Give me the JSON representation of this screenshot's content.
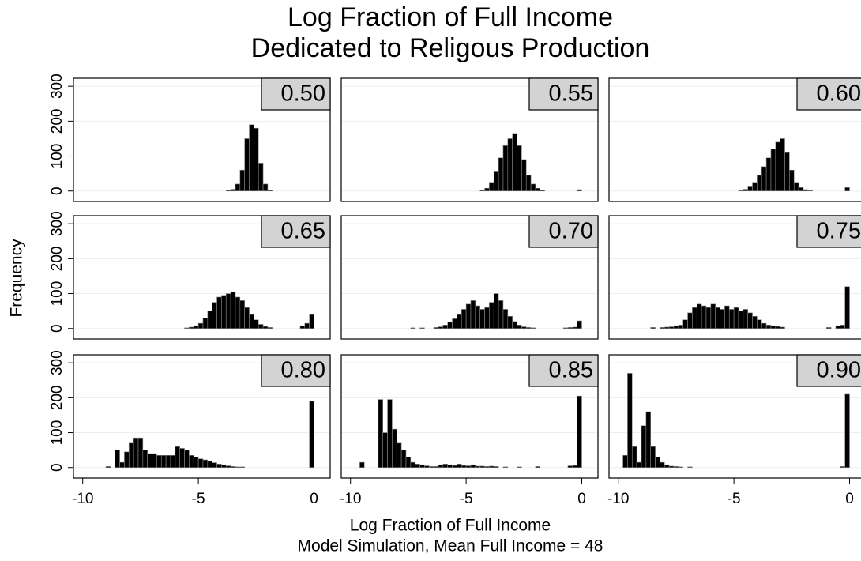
{
  "chart_data": {
    "type": "histogram_grid",
    "title": [
      "Log Fraction of Full Income",
      "Dedicated to Religous Production"
    ],
    "x_label": "Log Fraction of Full Income",
    "subtitle": "Model Simulation, Mean Full Income = 48",
    "y_label": "Frequency",
    "xlim": [
      -10.4,
      0.7
    ],
    "ylim": [
      -30,
      323
    ],
    "xticks": [
      -10,
      -5,
      0
    ],
    "yticks": [
      0,
      100,
      200,
      300
    ],
    "grid": true,
    "color": "#000000",
    "panels": [
      {
        "label": "0.50",
        "bins": [
          -3.8,
          -3.6,
          -3.4,
          -3.2,
          -3.0,
          -2.8,
          -2.6,
          -2.4,
          -2.2,
          -2.0,
          -1.8
        ],
        "values": [
          3,
          5,
          20,
          60,
          150,
          190,
          180,
          80,
          20,
          3
        ]
      },
      {
        "label": "0.55",
        "bins": [
          -4.4,
          -4.2,
          -4.0,
          -3.8,
          -3.6,
          -3.4,
          -3.2,
          -3.0,
          -2.8,
          -2.6,
          -2.4,
          -2.2,
          -2.0,
          -1.8,
          -1.6,
          -1.4,
          -1.2,
          -1.0,
          -0.8,
          -0.6,
          -0.4,
          -0.2,
          0
        ],
        "values": [
          3,
          8,
          25,
          55,
          95,
          130,
          150,
          165,
          130,
          90,
          45,
          20,
          8,
          3,
          0,
          0,
          0,
          0,
          0,
          0,
          0,
          4
        ]
      },
      {
        "label": "0.60",
        "bins": [
          -4.8,
          -4.6,
          -4.4,
          -4.2,
          -4.0,
          -3.8,
          -3.6,
          -3.4,
          -3.2,
          -3.0,
          -2.8,
          -2.6,
          -2.4,
          -2.2,
          -2.0,
          -1.8,
          -1.6,
          -1.4,
          -1.2,
          -1.0,
          -0.8,
          -0.6,
          -0.4,
          -0.2,
          0
        ],
        "values": [
          2,
          5,
          12,
          25,
          45,
          70,
          95,
          120,
          140,
          150,
          110,
          60,
          25,
          10,
          4,
          2,
          0,
          0,
          0,
          0,
          0,
          0,
          0,
          10
        ]
      },
      {
        "label": "0.65",
        "bins": [
          -5.6,
          -5.4,
          -5.2,
          -5.0,
          -4.8,
          -4.6,
          -4.4,
          -4.2,
          -4.0,
          -3.8,
          -3.6,
          -3.4,
          -3.2,
          -3.0,
          -2.8,
          -2.6,
          -2.4,
          -2.2,
          -2.0,
          -1.8,
          -1.6,
          -1.4,
          -1.2,
          -1.0,
          -0.8,
          -0.6,
          -0.4,
          -0.2,
          0
        ],
        "values": [
          2,
          4,
          8,
          15,
          30,
          50,
          75,
          90,
          95,
          100,
          105,
          90,
          80,
          60,
          40,
          25,
          12,
          6,
          3,
          0,
          0,
          0,
          0,
          0,
          0,
          8,
          15,
          40
        ]
      },
      {
        "label": "0.70",
        "bins": [
          -7.4,
          -7.2,
          -7.0,
          -6.8,
          -6.6,
          -6.4,
          -6.2,
          -6.0,
          -5.8,
          -5.6,
          -5.4,
          -5.2,
          -5.0,
          -4.8,
          -4.6,
          -4.4,
          -4.2,
          -4.0,
          -3.8,
          -3.6,
          -3.4,
          -3.2,
          -3.0,
          -2.8,
          -2.6,
          -2.4,
          -2.2,
          -2.0,
          -1.8,
          -1.6,
          -1.4,
          -1.2,
          -1.0,
          -0.8,
          -0.6,
          -0.4,
          -0.2,
          0
        ],
        "values": [
          2,
          0,
          2,
          0,
          0,
          3,
          5,
          10,
          18,
          28,
          40,
          55,
          70,
          80,
          65,
          55,
          60,
          75,
          100,
          80,
          55,
          35,
          20,
          10,
          5,
          3,
          2,
          0,
          0,
          0,
          0,
          0,
          0,
          2,
          3,
          4,
          22
        ]
      },
      {
        "label": "0.75",
        "bins": [
          -8.6,
          -8.4,
          -8.2,
          -8.0,
          -7.8,
          -7.6,
          -7.4,
          -7.2,
          -7.0,
          -6.8,
          -6.6,
          -6.4,
          -6.2,
          -6.0,
          -5.8,
          -5.6,
          -5.4,
          -5.2,
          -5.0,
          -4.8,
          -4.6,
          -4.4,
          -4.2,
          -4.0,
          -3.8,
          -3.6,
          -3.4,
          -3.2,
          -3.0,
          -2.8,
          -2.6,
          -2.4,
          -2.2,
          -2.0,
          -1.8,
          -1.6,
          -1.4,
          -1.2,
          -1.0,
          -0.8,
          -0.6,
          -0.4,
          -0.2,
          0
        ],
        "values": [
          3,
          0,
          3,
          4,
          5,
          8,
          10,
          25,
          45,
          60,
          70,
          65,
          60,
          70,
          60,
          55,
          65,
          55,
          60,
          50,
          55,
          45,
          35,
          25,
          15,
          10,
          8,
          6,
          4,
          0,
          0,
          0,
          0,
          0,
          0,
          0,
          0,
          0,
          3,
          0,
          8,
          10,
          120
        ]
      },
      {
        "label": "0.80",
        "bins": [
          -9.0,
          -8.8,
          -8.6,
          -8.4,
          -8.2,
          -8.0,
          -7.8,
          -7.6,
          -7.4,
          -7.2,
          -7.0,
          -6.8,
          -6.6,
          -6.4,
          -6.2,
          -6.0,
          -5.8,
          -5.6,
          -5.4,
          -5.2,
          -5.0,
          -4.8,
          -4.6,
          -4.4,
          -4.2,
          -4.0,
          -3.8,
          -3.6,
          -3.4,
          -3.2,
          -3.0,
          -2.8,
          -2.6,
          -2.4,
          -2.2,
          -2.0,
          -1.8,
          -1.6,
          -1.4,
          -1.2,
          -1.0,
          -0.8,
          -0.6,
          -0.4,
          -0.2,
          0
        ],
        "values": [
          3,
          0,
          50,
          15,
          45,
          70,
          85,
          85,
          50,
          40,
          40,
          35,
          35,
          35,
          35,
          60,
          55,
          50,
          35,
          30,
          25,
          22,
          18,
          14,
          10,
          8,
          5,
          3,
          2,
          2,
          0,
          0,
          0,
          0,
          0,
          0,
          0,
          0,
          0,
          0,
          0,
          0,
          0,
          0,
          190
        ]
      },
      {
        "label": "0.85",
        "bins": [
          -9.6,
          -9.4,
          -9.2,
          -9.0,
          -8.8,
          -8.6,
          -8.4,
          -8.2,
          -8.0,
          -7.8,
          -7.6,
          -7.4,
          -7.2,
          -7.0,
          -6.8,
          -6.6,
          -6.4,
          -6.2,
          -6.0,
          -5.8,
          -5.6,
          -5.4,
          -5.2,
          -5.0,
          -4.8,
          -4.6,
          -4.4,
          -4.2,
          -4.0,
          -3.8,
          -3.6,
          -3.4,
          -3.2,
          -3.0,
          -2.8,
          -2.6,
          -2.4,
          -2.2,
          -2.0,
          -1.8,
          -1.6,
          -1.4,
          -1.2,
          -1.0,
          -0.8,
          -0.6,
          -0.4,
          -0.2,
          0
        ],
        "values": [
          15,
          0,
          0,
          0,
          195,
          100,
          195,
          110,
          70,
          50,
          30,
          15,
          10,
          8,
          5,
          3,
          3,
          8,
          10,
          8,
          6,
          10,
          6,
          5,
          8,
          4,
          4,
          3,
          4,
          3,
          0,
          2,
          0,
          0,
          2,
          0,
          0,
          0,
          3,
          0,
          0,
          0,
          0,
          0,
          0,
          5,
          6,
          205
        ]
      },
      {
        "label": "0.90",
        "bins": [
          -9.8,
          -9.6,
          -9.4,
          -9.2,
          -9.0,
          -8.8,
          -8.6,
          -8.4,
          -8.2,
          -8.0,
          -7.8,
          -7.6,
          -7.4,
          -7.2,
          -7.0,
          -6.8,
          -6.6,
          -6.4,
          -6.2,
          -6.0,
          -5.8,
          -5.6,
          -5.4,
          -5.2,
          -5.0,
          -4.8,
          -4.6,
          -4.4,
          -4.2,
          -4.0,
          -3.8,
          -3.6,
          -3.4,
          -3.2,
          -3.0,
          -2.8,
          -2.6,
          -2.4,
          -2.2,
          -2.0,
          -1.8,
          -1.6,
          -1.4,
          -1.2,
          -1.0,
          -0.8,
          -0.6,
          -0.4,
          -0.2,
          0
        ],
        "values": [
          35,
          270,
          60,
          15,
          120,
          160,
          60,
          30,
          15,
          8,
          4,
          3,
          2,
          0,
          2,
          0,
          0,
          0,
          0,
          0,
          0,
          0,
          0,
          0,
          0,
          0,
          0,
          0,
          0,
          0,
          0,
          0,
          0,
          0,
          0,
          0,
          0,
          0,
          0,
          0,
          0,
          0,
          0,
          0,
          0,
          0,
          0,
          3,
          210
        ]
      }
    ]
  }
}
